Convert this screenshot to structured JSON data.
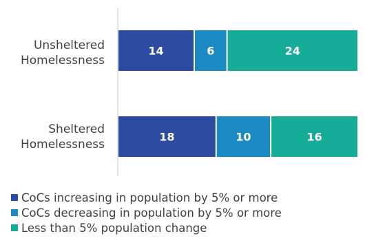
{
  "chart_data": {
    "type": "bar",
    "orientation": "horizontal",
    "stacked": true,
    "categories": [
      [
        "Unsheltered",
        "Homelessness"
      ],
      [
        "Sheltered",
        "Homelessness"
      ]
    ],
    "series": [
      {
        "name": "CoCs increasing in population by 5% or more",
        "values": [
          14,
          18
        ],
        "color": "#2d4ba0"
      },
      {
        "name": "CoCs decreasing in population by 5% or more",
        "values": [
          6,
          10
        ],
        "color": "#1b8ac3"
      },
      {
        "name": "Less than 5% population change",
        "values": [
          24,
          16
        ],
        "color": "#15ad98"
      }
    ],
    "legend_position": "bottom",
    "grid": false
  }
}
